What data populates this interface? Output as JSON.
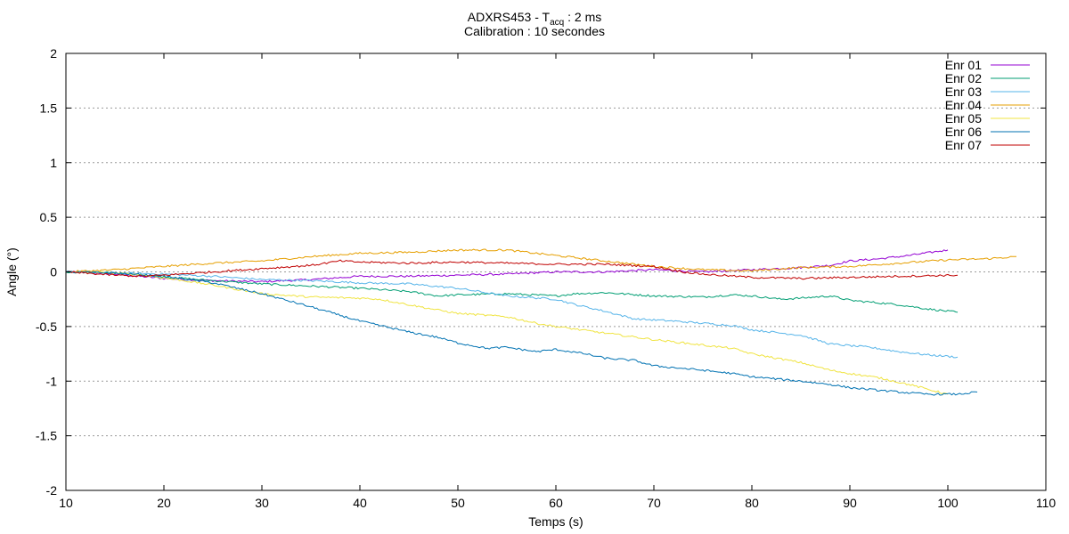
{
  "chart_data": {
    "type": "line",
    "title": {
      "prefix": "ADXRS453 - T",
      "subscript": "acq",
      "suffix": " : 2 ms"
    },
    "subtitle": "Calibration : 10 secondes",
    "xlabel": "Temps (s)",
    "ylabel": "Angle (°)",
    "xlim": [
      10,
      110
    ],
    "ylim": [
      -2,
      2
    ],
    "x_ticks": [
      10,
      20,
      30,
      40,
      50,
      60,
      70,
      80,
      90,
      100,
      110
    ],
    "y_ticks": [
      -2,
      -1.5,
      -1,
      -0.5,
      0,
      0.5,
      1,
      1.5,
      2
    ],
    "grid": "horizontal dotted",
    "legend_position": "top-right",
    "series": [
      {
        "name": "Enr 01",
        "color": "#9400d3",
        "points": [
          [
            10,
            0
          ],
          [
            15,
            -0.02
          ],
          [
            20,
            -0.06
          ],
          [
            25,
            -0.08
          ],
          [
            30,
            -0.09
          ],
          [
            35,
            -0.07
          ],
          [
            40,
            -0.04
          ],
          [
            45,
            -0.04
          ],
          [
            50,
            -0.03
          ],
          [
            55,
            -0.02
          ],
          [
            60,
            0.0
          ],
          [
            65,
            0.0
          ],
          [
            70,
            0.02
          ],
          [
            75,
            0.0
          ],
          [
            80,
            0.02
          ],
          [
            85,
            0.04
          ],
          [
            88,
            0.06
          ],
          [
            90,
            0.1
          ],
          [
            93,
            0.12
          ],
          [
            96,
            0.15
          ],
          [
            100,
            0.2
          ]
        ]
      },
      {
        "name": "Enr 02",
        "color": "#009e73",
        "points": [
          [
            10,
            0
          ],
          [
            15,
            -0.01
          ],
          [
            18,
            -0.03
          ],
          [
            22,
            -0.06
          ],
          [
            25,
            -0.08
          ],
          [
            30,
            -0.11
          ],
          [
            35,
            -0.13
          ],
          [
            40,
            -0.15
          ],
          [
            45,
            -0.18
          ],
          [
            48,
            -0.22
          ],
          [
            50,
            -0.21
          ],
          [
            55,
            -0.2
          ],
          [
            60,
            -0.22
          ],
          [
            62,
            -0.2
          ],
          [
            65,
            -0.19
          ],
          [
            70,
            -0.22
          ],
          [
            75,
            -0.23
          ],
          [
            78,
            -0.21
          ],
          [
            80,
            -0.22
          ],
          [
            83,
            -0.25
          ],
          [
            85,
            -0.24
          ],
          [
            88,
            -0.22
          ],
          [
            90,
            -0.26
          ],
          [
            95,
            -0.3
          ],
          [
            98,
            -0.34
          ],
          [
            101,
            -0.37
          ]
        ]
      },
      {
        "name": "Enr 03",
        "color": "#56b4e9",
        "points": [
          [
            10,
            0
          ],
          [
            15,
            -0.01
          ],
          [
            20,
            -0.02
          ],
          [
            25,
            -0.04
          ],
          [
            30,
            -0.07
          ],
          [
            35,
            -0.08
          ],
          [
            40,
            -0.1
          ],
          [
            45,
            -0.11
          ],
          [
            50,
            -0.15
          ],
          [
            55,
            -0.22
          ],
          [
            60,
            -0.25
          ],
          [
            62,
            -0.3
          ],
          [
            65,
            -0.36
          ],
          [
            68,
            -0.43
          ],
          [
            72,
            -0.45
          ],
          [
            75,
            -0.47
          ],
          [
            78,
            -0.49
          ],
          [
            80,
            -0.53
          ],
          [
            85,
            -0.58
          ],
          [
            88,
            -0.66
          ],
          [
            92,
            -0.69
          ],
          [
            95,
            -0.73
          ],
          [
            98,
            -0.76
          ],
          [
            101,
            -0.78
          ]
        ]
      },
      {
        "name": "Enr 04",
        "color": "#e69f00",
        "points": [
          [
            10,
            0
          ],
          [
            15,
            0.02
          ],
          [
            20,
            0.05
          ],
          [
            25,
            0.08
          ],
          [
            30,
            0.1
          ],
          [
            35,
            0.14
          ],
          [
            40,
            0.17
          ],
          [
            45,
            0.18
          ],
          [
            50,
            0.2
          ],
          [
            55,
            0.2
          ],
          [
            60,
            0.15
          ],
          [
            65,
            0.1
          ],
          [
            70,
            0.05
          ],
          [
            75,
            0.02
          ],
          [
            80,
            0.01
          ],
          [
            85,
            0.04
          ],
          [
            90,
            0.05
          ],
          [
            95,
            0.08
          ],
          [
            100,
            0.11
          ],
          [
            104,
            0.12
          ],
          [
            107,
            0.14
          ]
        ]
      },
      {
        "name": "Enr 05",
        "color": "#f0e442",
        "points": [
          [
            10,
            0
          ],
          [
            15,
            -0.01
          ],
          [
            18,
            -0.03
          ],
          [
            22,
            -0.08
          ],
          [
            25,
            -0.12
          ],
          [
            30,
            -0.2
          ],
          [
            35,
            -0.23
          ],
          [
            40,
            -0.24
          ],
          [
            42,
            -0.25
          ],
          [
            45,
            -0.3
          ],
          [
            48,
            -0.35
          ],
          [
            50,
            -0.38
          ],
          [
            55,
            -0.41
          ],
          [
            58,
            -0.47
          ],
          [
            60,
            -0.5
          ],
          [
            65,
            -0.56
          ],
          [
            70,
            -0.62
          ],
          [
            75,
            -0.67
          ],
          [
            78,
            -0.7
          ],
          [
            80,
            -0.75
          ],
          [
            85,
            -0.83
          ],
          [
            88,
            -0.9
          ],
          [
            90,
            -0.93
          ],
          [
            93,
            -0.97
          ],
          [
            96,
            -1.03
          ],
          [
            100,
            -1.12
          ]
        ]
      },
      {
        "name": "Enr 06",
        "color": "#0072b2",
        "points": [
          [
            10,
            0
          ],
          [
            15,
            -0.01
          ],
          [
            20,
            -0.04
          ],
          [
            25,
            -0.1
          ],
          [
            30,
            -0.2
          ],
          [
            35,
            -0.32
          ],
          [
            40,
            -0.45
          ],
          [
            45,
            -0.55
          ],
          [
            48,
            -0.6
          ],
          [
            50,
            -0.65
          ],
          [
            53,
            -0.7
          ],
          [
            55,
            -0.69
          ],
          [
            58,
            -0.73
          ],
          [
            60,
            -0.71
          ],
          [
            63,
            -0.75
          ],
          [
            65,
            -0.79
          ],
          [
            68,
            -0.81
          ],
          [
            70,
            -0.86
          ],
          [
            75,
            -0.9
          ],
          [
            78,
            -0.93
          ],
          [
            80,
            -0.96
          ],
          [
            85,
            -1.0
          ],
          [
            88,
            -1.03
          ],
          [
            90,
            -1.06
          ],
          [
            95,
            -1.1
          ],
          [
            98,
            -1.12
          ],
          [
            101,
            -1.12
          ],
          [
            103,
            -1.1
          ]
        ]
      },
      {
        "name": "Enr 07",
        "color": "#c00000",
        "points": [
          [
            10,
            0
          ],
          [
            15,
            -0.03
          ],
          [
            18,
            -0.04
          ],
          [
            20,
            -0.03
          ],
          [
            25,
            0.0
          ],
          [
            30,
            0.03
          ],
          [
            35,
            0.06
          ],
          [
            38,
            0.1
          ],
          [
            40,
            0.09
          ],
          [
            45,
            0.08
          ],
          [
            50,
            0.09
          ],
          [
            55,
            0.08
          ],
          [
            60,
            0.07
          ],
          [
            65,
            0.07
          ],
          [
            70,
            0.05
          ],
          [
            73,
            0.0
          ],
          [
            75,
            -0.02
          ],
          [
            80,
            -0.05
          ],
          [
            85,
            -0.06
          ],
          [
            90,
            -0.05
          ],
          [
            95,
            -0.04
          ],
          [
            101,
            -0.03
          ]
        ]
      }
    ]
  }
}
